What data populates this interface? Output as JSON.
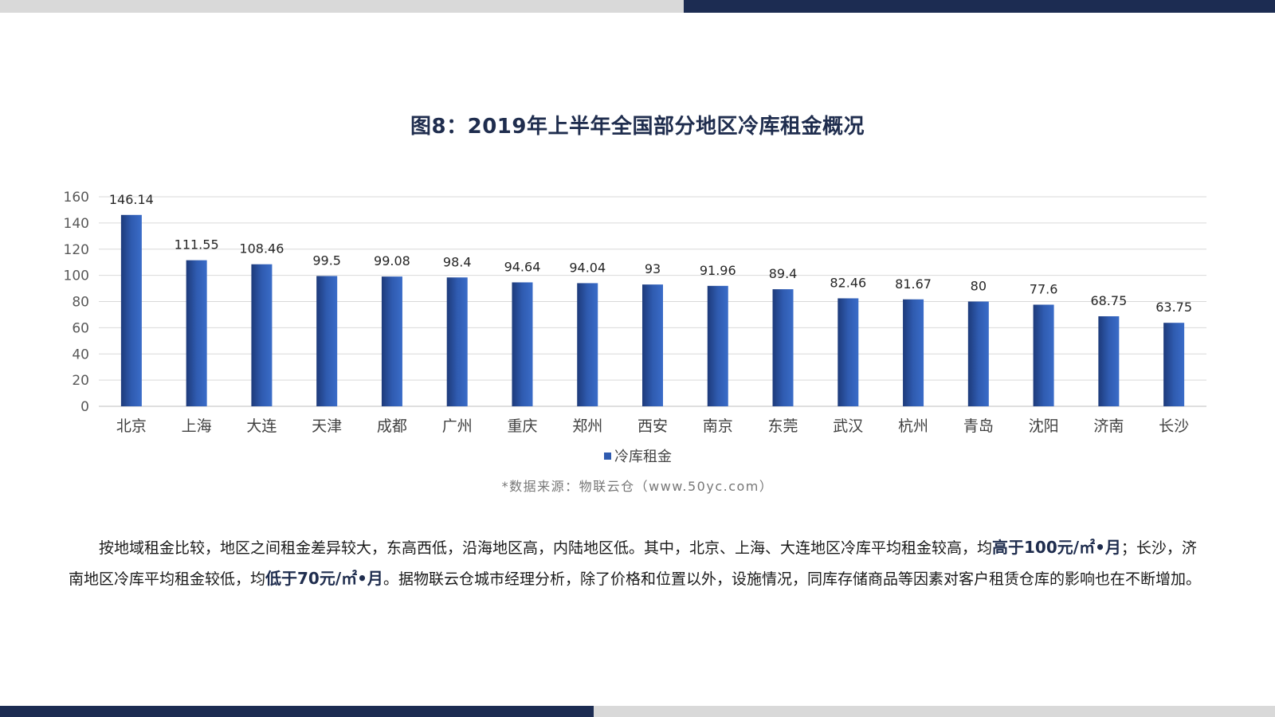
{
  "title": "图8：2019年上半年全国部分地区冷库租金概况",
  "chart_data": {
    "type": "bar",
    "categories": [
      "北京",
      "上海",
      "大连",
      "天津",
      "成都",
      "广州",
      "重庆",
      "郑州",
      "西安",
      "南京",
      "东莞",
      "武汉",
      "杭州",
      "青岛",
      "沈阳",
      "济南",
      "长沙"
    ],
    "series": [
      {
        "name": "冷库租金",
        "values": [
          146.14,
          111.55,
          108.46,
          99.5,
          99.08,
          98.4,
          94.64,
          94.04,
          93,
          91.96,
          89.4,
          82.46,
          81.67,
          80,
          77.6,
          68.75,
          63.75
        ]
      }
    ],
    "value_labels": [
      "146.14",
      "111.55",
      "108.46",
      "99.5",
      "99.08",
      "98.4",
      "94.64",
      "94.04",
      "93",
      "91.96",
      "89.4",
      "82.46",
      "81.67",
      "80",
      "77.6",
      "68.75",
      "63.75"
    ],
    "yticks": [
      0,
      20,
      40,
      60,
      80,
      100,
      120,
      140,
      160
    ],
    "ylim": [
      0,
      160
    ],
    "grid": true,
    "legend_position": "bottom",
    "bar_color": "#2f5bb0",
    "bar_color_dark": "#1d3a7a"
  },
  "source": "*数据来源：物联云仓（www.50yc.com）",
  "paragraph": {
    "part1": "按地域租金比较，地区之间租金差异较大，东高西低，沿海地区高，内陆地区低。其中，北京、上海、大连地区冷库平均租金较高，均",
    "bold1": "高于100元/㎡•月",
    "part2": "；长沙，济南地区冷库平均租金较低，均",
    "bold2": "低于70元/㎡•月",
    "part3": "。据物联云仓城市经理分析，除了价格和位置以外，设施情况，同库存储商品等因素对客户租赁仓库的影响也在不断增加。"
  },
  "colors": {
    "navy": "#1c2c52",
    "gray_bar": "#d9d9d9"
  }
}
